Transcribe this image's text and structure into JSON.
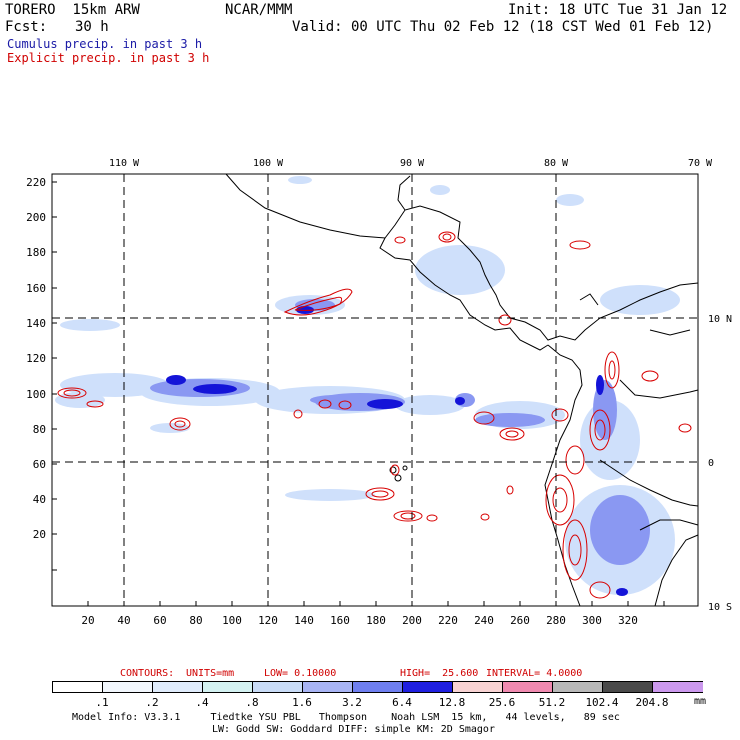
{
  "header": {
    "model_name": "TORERO  15km ARW",
    "org": "NCAR/MMM",
    "init": "Init: 18 UTC Tue 31 Jan 12",
    "fcst_label": "Fcst:",
    "fcst_hours": "30 h",
    "valid": "Valid: 00 UTC Thu 02 Feb 12 (18 CST Wed 01 Feb 12)",
    "cumulus_label": "Cumulus precip. in past 3 h",
    "explicit_label": "Explicit precip. in past 3 h"
  },
  "colors": {
    "cumulus": "#1a1aa6",
    "explicit": "#d00000",
    "precip_light": "#cfe0fb",
    "precip_mid": "#6f82f0",
    "precip_heavy": "#1414d8",
    "contour": "#d80000"
  },
  "map": {
    "lon_labels": [
      "110 W",
      "100 W",
      "90 W",
      "80 W",
      "70 W"
    ],
    "lat_labels": [
      "10 N",
      "0",
      "10 S"
    ],
    "y_ticks": [
      "220",
      "200",
      "180",
      "160",
      "140",
      "120",
      "100",
      "80",
      "60",
      "40",
      "20"
    ],
    "x_ticks": [
      "20",
      "40",
      "60",
      "80",
      "100",
      "120",
      "140",
      "160",
      "180",
      "200",
      "220",
      "240",
      "260",
      "280",
      "300",
      "320"
    ]
  },
  "contours_line": {
    "label": "CONTOURS:",
    "units": "UNITS=mm",
    "low": "LOW= 0.10000",
    "high": "HIGH=  25.600",
    "interval": "INTERVAL= 4.0000"
  },
  "colorbar": {
    "colors": [
      "#ffffff",
      "#f2f7fd",
      "#e0ecfc",
      "#d4f2f2",
      "#c9dcf7",
      "#a8b4f4",
      "#6f7ff0",
      "#1f1fe0",
      "#f8d3d3",
      "#f08ab0",
      "#b8b8b8",
      "#4a4a4a",
      "#cc99ee"
    ],
    "labels": [
      ".1",
      ".2",
      ".4",
      ".8",
      "1.6",
      "3.2",
      "6.4",
      "12.8",
      "25.6",
      "51.2",
      "102.4",
      "204.8"
    ],
    "unit": "mm"
  },
  "footer": {
    "line1": "Model Info: V3.3.1     Tiedtke YSU PBL   Thompson    Noah LSM  15 km,   44 levels,   89 sec",
    "line2": "LW: Godd SW: Goddard DIFF: simple KM: 2D Smagor"
  }
}
